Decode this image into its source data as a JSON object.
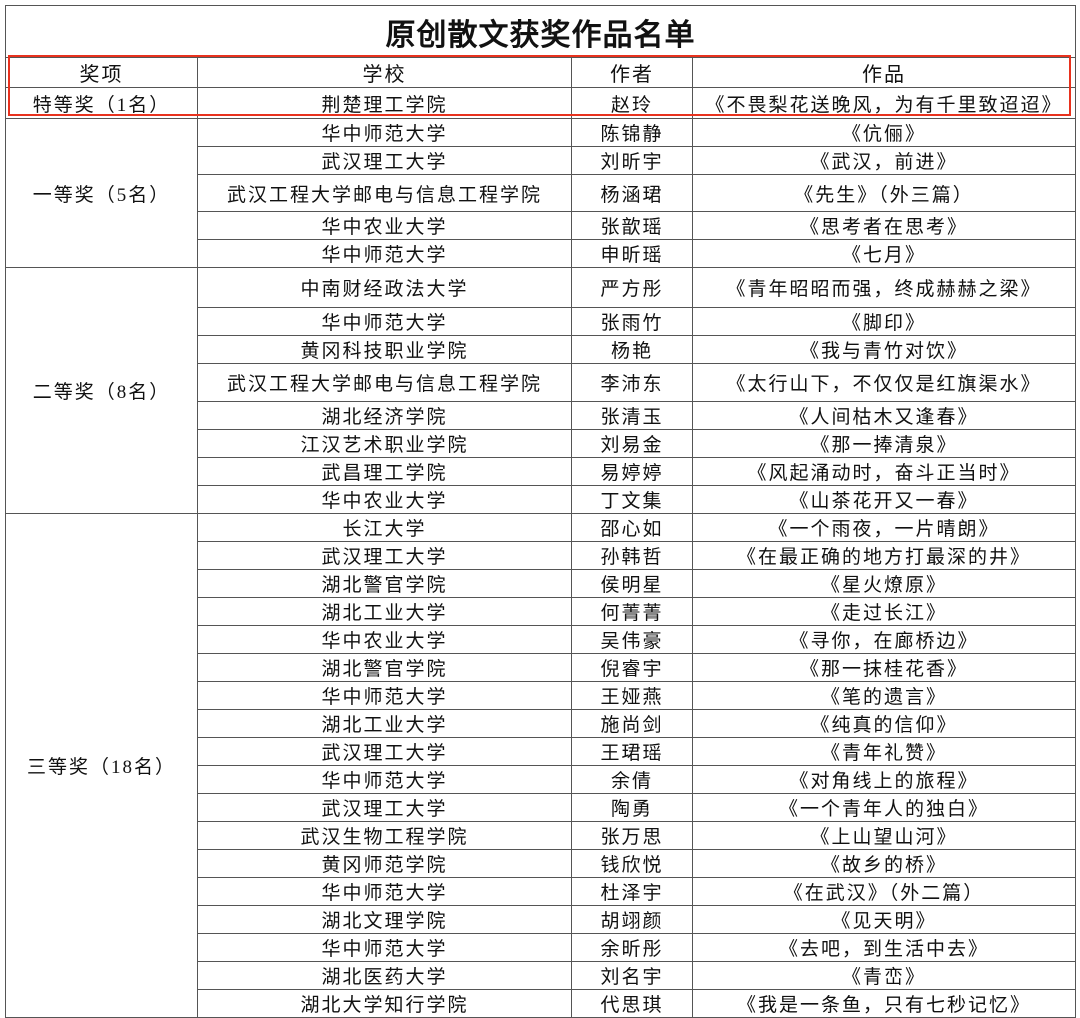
{
  "title": "原创散文获奖作品名单",
  "headers": {
    "award": "奖项",
    "school": "学校",
    "author": "作者",
    "work": "作品"
  },
  "highlight_color": "#e8321e",
  "groups": [
    {
      "award": "特等奖（1名）",
      "rows": [
        {
          "school": "荆楚理工学院",
          "author": "赵玲",
          "work": "《不畏梨花送晚风，为有千里致迢迢》"
        }
      ]
    },
    {
      "award": "一等奖（5名）",
      "rows": [
        {
          "school": "华中师范大学",
          "author": "陈锦静",
          "work": "《伉俪》"
        },
        {
          "school": "武汉理工大学",
          "author": "刘昕宇",
          "work": "《武汉，前进》"
        },
        {
          "school": "武汉工程大学邮电与信息工程学院",
          "author": "杨涵珺",
          "work": "《先生》（外三篇）"
        },
        {
          "school": "华中农业大学",
          "author": "张歆瑶",
          "work": "《思考者在思考》"
        },
        {
          "school": "华中师范大学",
          "author": "申昕瑶",
          "work": "《七月》"
        }
      ]
    },
    {
      "award": "二等奖（8名）",
      "rows": [
        {
          "school": "中南财经政法大学",
          "author": "严方彤",
          "work": "《青年昭昭而强，终成赫赫之梁》"
        },
        {
          "school": "华中师范大学",
          "author": "张雨竹",
          "work": "《脚印》"
        },
        {
          "school": "黄冈科技职业学院",
          "author": "杨艳",
          "work": "《我与青竹对饮》"
        },
        {
          "school": "武汉工程大学邮电与信息工程学院",
          "author": "李沛东",
          "work": "《太行山下，不仅仅是红旗渠水》"
        },
        {
          "school": "湖北经济学院",
          "author": "张清玉",
          "work": "《人间枯木又逢春》"
        },
        {
          "school": "江汉艺术职业学院",
          "author": "刘易金",
          "work": "《那一捧清泉》"
        },
        {
          "school": "武昌理工学院",
          "author": "易婷婷",
          "work": "《风起涌动时，奋斗正当时》"
        },
        {
          "school": "华中农业大学",
          "author": "丁文集",
          "work": "《山茶花开又一春》"
        }
      ]
    },
    {
      "award": "三等奖（18名）",
      "rows": [
        {
          "school": "长江大学",
          "author": "邵心如",
          "work": "《一个雨夜，一片晴朗》"
        },
        {
          "school": "武汉理工大学",
          "author": "孙韩哲",
          "work": "《在最正确的地方打最深的井》"
        },
        {
          "school": "湖北警官学院",
          "author": "侯明星",
          "work": "《星火燎原》"
        },
        {
          "school": "湖北工业大学",
          "author": "何菁菁",
          "work": "《走过长江》"
        },
        {
          "school": "华中农业大学",
          "author": "吴伟豪",
          "work": "《寻你，在廊桥边》"
        },
        {
          "school": "湖北警官学院",
          "author": "倪睿宇",
          "work": "《那一抹桂花香》"
        },
        {
          "school": "华中师范大学",
          "author": "王娅燕",
          "work": "《笔的遗言》"
        },
        {
          "school": "湖北工业大学",
          "author": "施尚剑",
          "work": "《纯真的信仰》"
        },
        {
          "school": "武汉理工大学",
          "author": "王珺瑶",
          "work": "《青年礼赞》"
        },
        {
          "school": "华中师范大学",
          "author": "余倩",
          "work": "《对角线上的旅程》"
        },
        {
          "school": "武汉理工大学",
          "author": "陶勇",
          "work": "《一个青年人的独白》"
        },
        {
          "school": "武汉生物工程学院",
          "author": "张万思",
          "work": "《上山望山河》"
        },
        {
          "school": "黄冈师范学院",
          "author": "钱欣悦",
          "work": "《故乡的桥》"
        },
        {
          "school": "华中师范大学",
          "author": "杜泽宇",
          "work": "《在武汉》（外二篇）"
        },
        {
          "school": "湖北文理学院",
          "author": "胡翊颜",
          "work": "《见天明》"
        },
        {
          "school": "华中师范大学",
          "author": "余昕彤",
          "work": "《去吧，到生活中去》"
        },
        {
          "school": "湖北医药大学",
          "author": "刘名宇",
          "work": "《青峦》"
        },
        {
          "school": "湖北大学知行学院",
          "author": "代思琪",
          "work": "《我是一条鱼，只有七秒记忆》"
        }
      ]
    }
  ]
}
